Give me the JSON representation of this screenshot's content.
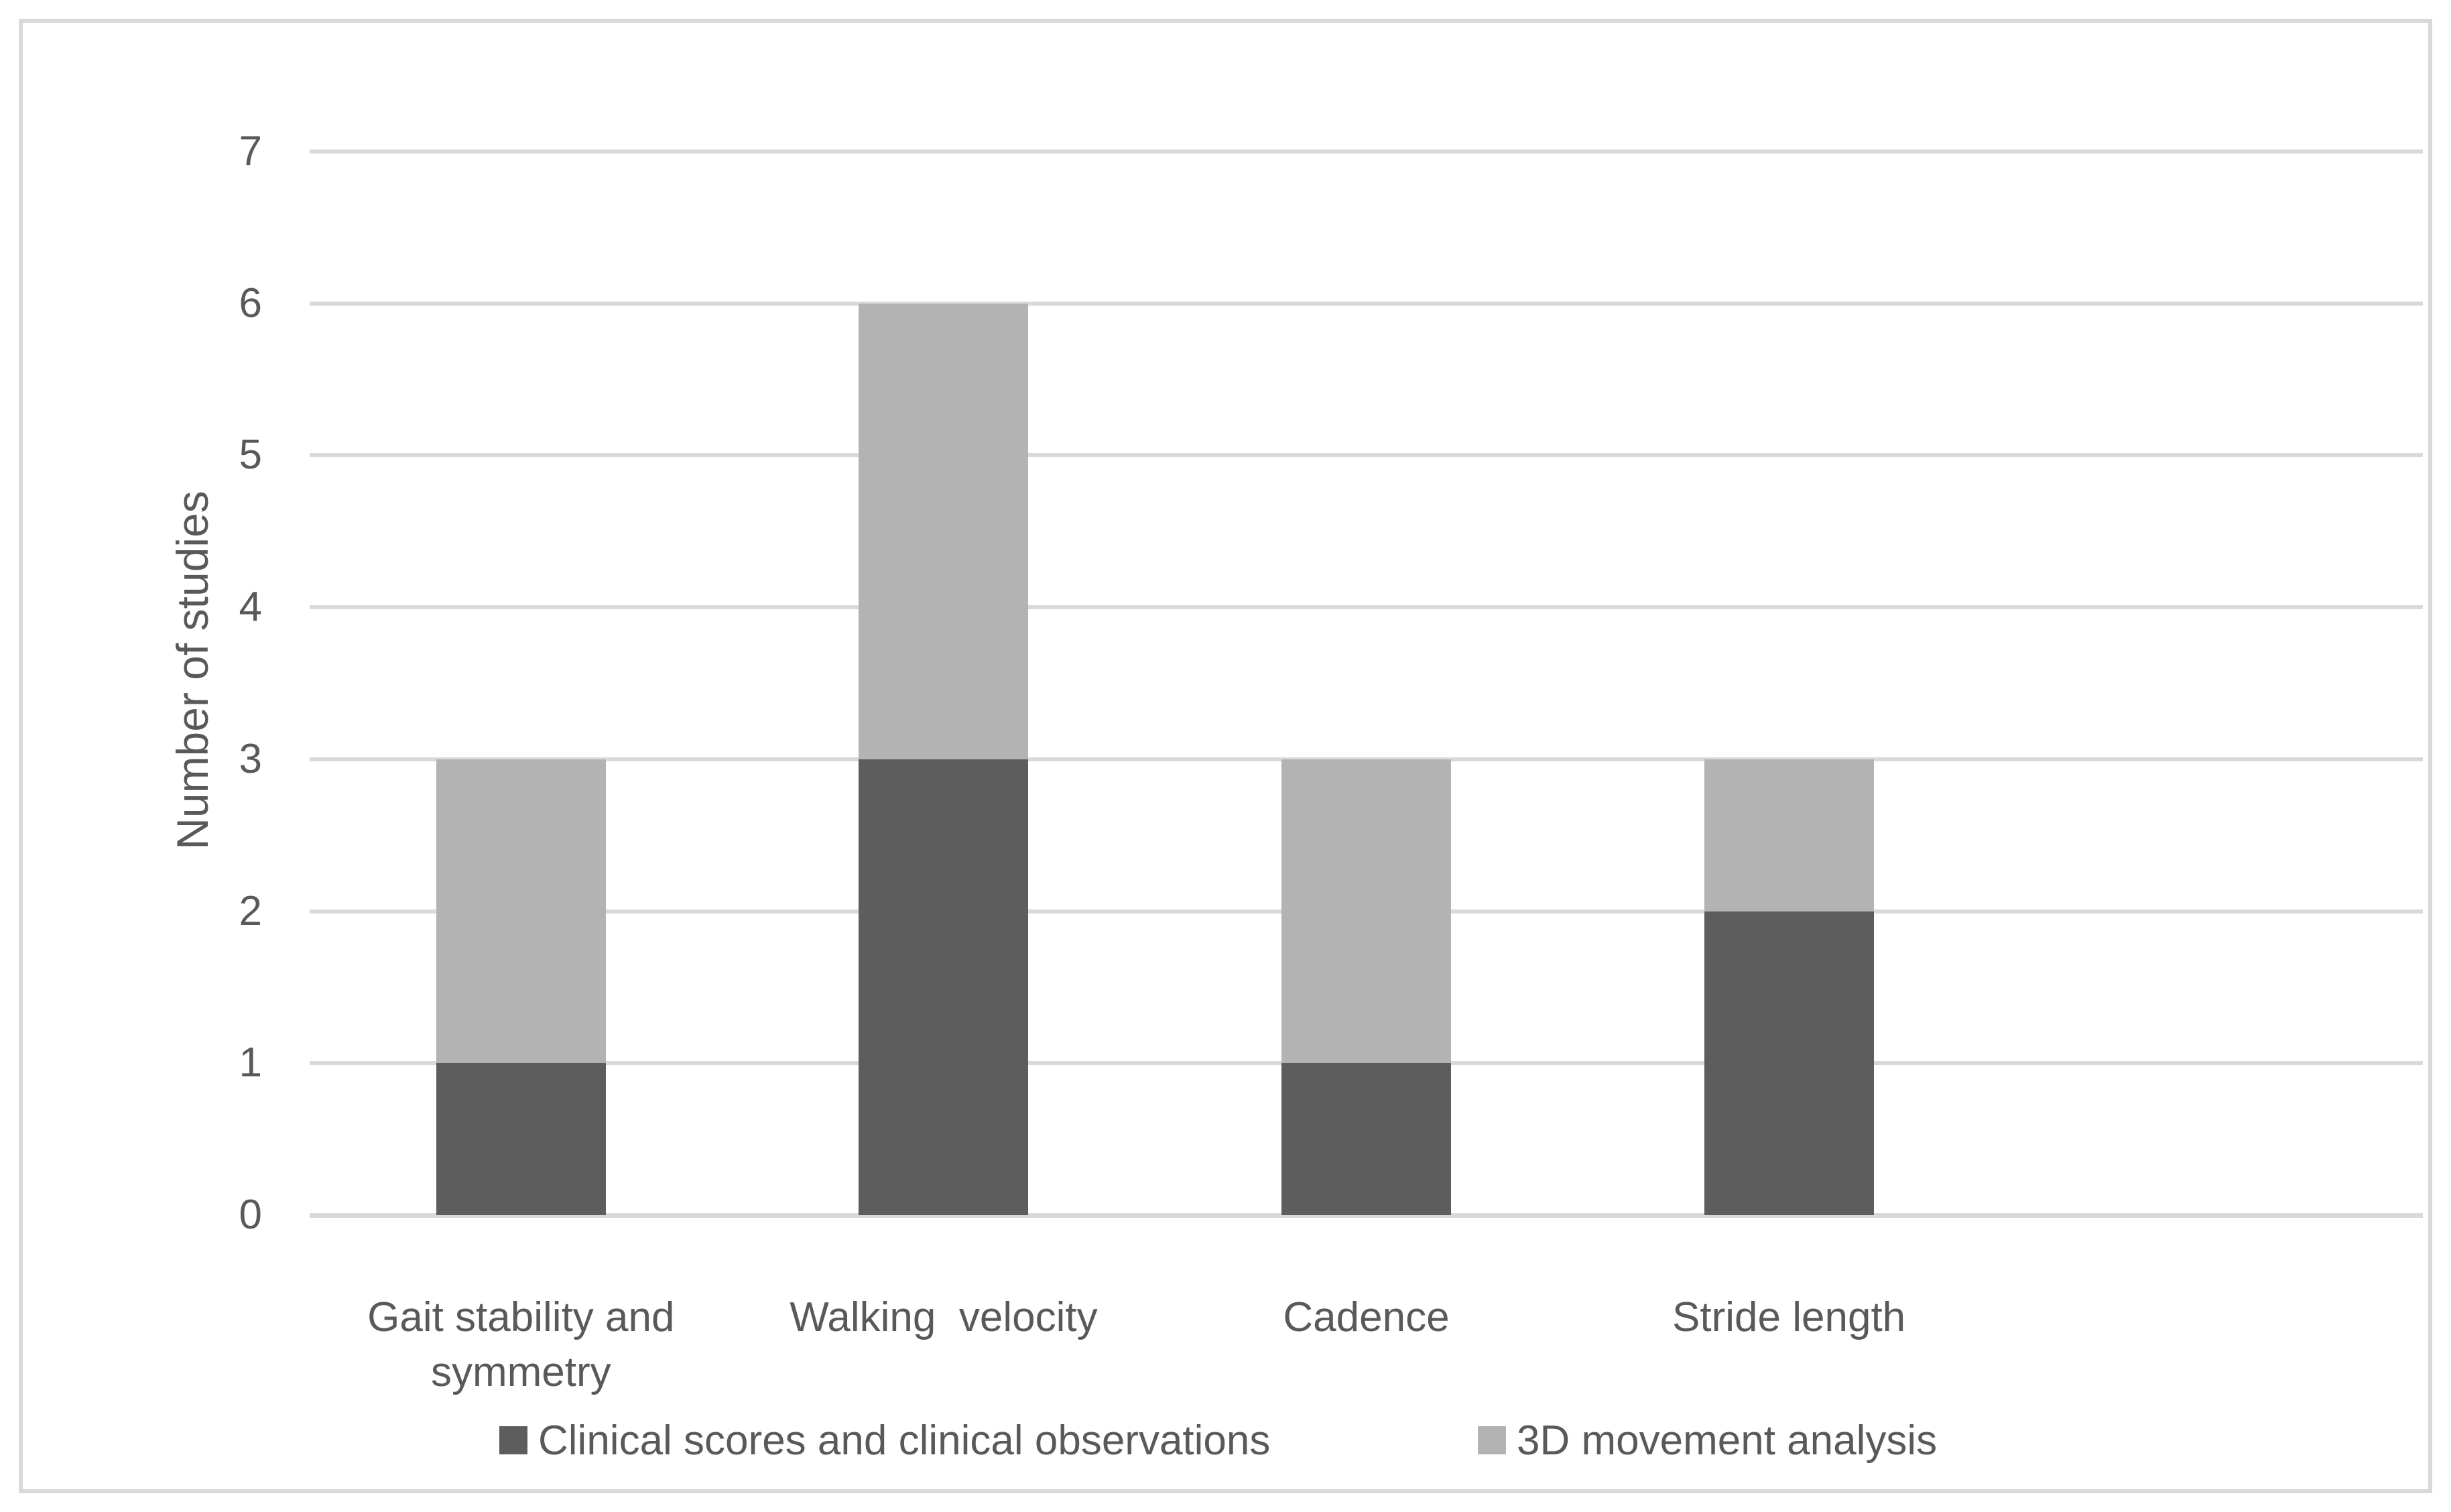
{
  "figure": {
    "background": "#ffffff",
    "border_color": "#d9d9d9",
    "text_color": "#595959"
  },
  "chart_data": {
    "type": "bar",
    "stacked": true,
    "title": "",
    "xlabel": "",
    "ylabel": "Number of studies",
    "categories": [
      "Gait stability and\nsymmetry",
      "Walking  velocity",
      "Cadence",
      "Stride length"
    ],
    "series": [
      {
        "name": "Clinical scores and clinical observations",
        "color": "#5d5d5d",
        "values": [
          1,
          3,
          1,
          2
        ]
      },
      {
        "name": "3D movement analysis",
        "color": "#b3b3b3",
        "values": [
          2,
          3,
          2,
          1
        ]
      }
    ],
    "totals": [
      3,
      6,
      3,
      3
    ],
    "ylim": [
      0,
      7
    ],
    "yticks": [
      0,
      1,
      2,
      3,
      4,
      5,
      6,
      7
    ],
    "grid": true,
    "gridline_color": "#d9d9d9",
    "legend_position": "bottom"
  }
}
